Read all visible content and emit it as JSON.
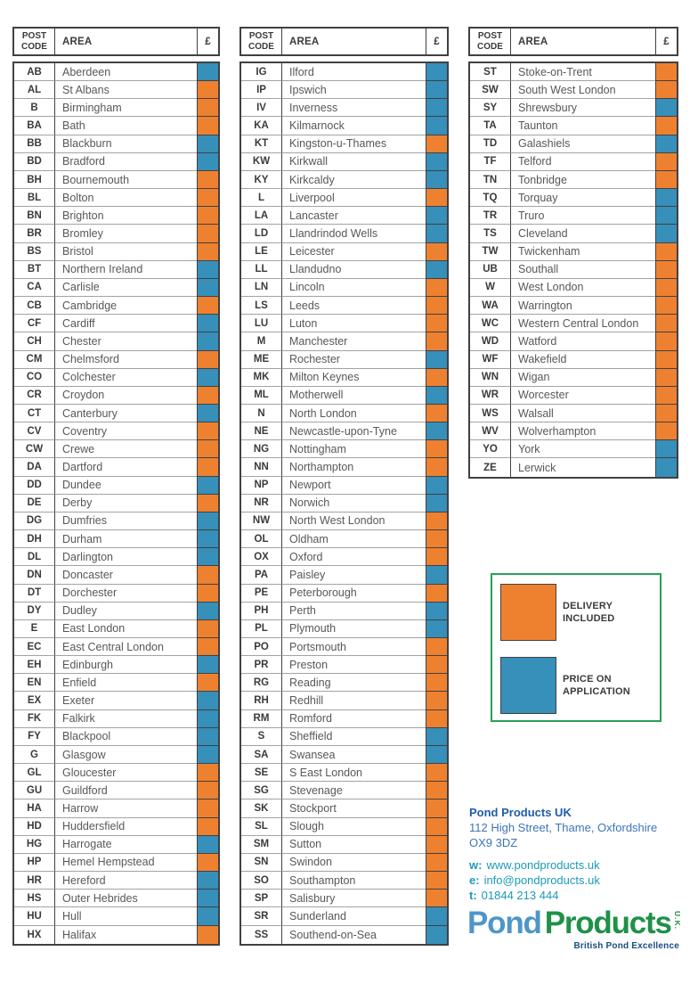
{
  "labels": {
    "post_code": "POST CODE",
    "area": "AREA",
    "pound": "£"
  },
  "colors": {
    "delivery_included": "#EE8130",
    "price_on_application": "#3690B9",
    "table_border": "#414042",
    "row_divider": "#A3A3A2",
    "code_text": "#3A3A3C",
    "area_text": "#58585A",
    "legend_border": "#27A055",
    "footer_blue_dark": "#1F5CA9",
    "footer_blue": "#3D74B8",
    "footer_teal": "#1C9AB5",
    "logo_blue": "#4E96C8",
    "logo_green": "#1F9148",
    "tagline_navy": "#1B4B7E"
  },
  "tables": [
    {
      "rows": [
        {
          "code": "AB",
          "area": "Aberdeen",
          "status": "poa"
        },
        {
          "code": "AL",
          "area": "St Albans",
          "status": "inc"
        },
        {
          "code": "B",
          "area": "Birmingham",
          "status": "inc"
        },
        {
          "code": "BA",
          "area": "Bath",
          "status": "inc"
        },
        {
          "code": "BB",
          "area": "Blackburn",
          "status": "poa"
        },
        {
          "code": "BD",
          "area": "Bradford",
          "status": "poa"
        },
        {
          "code": "BH",
          "area": "Bournemouth",
          "status": "inc"
        },
        {
          "code": "BL",
          "area": "Bolton",
          "status": "inc"
        },
        {
          "code": "BN",
          "area": "Brighton",
          "status": "inc"
        },
        {
          "code": "BR",
          "area": "Bromley",
          "status": "inc"
        },
        {
          "code": "BS",
          "area": "Bristol",
          "status": "inc"
        },
        {
          "code": "BT",
          "area": "Northern Ireland",
          "status": "poa"
        },
        {
          "code": "CA",
          "area": "Carlisle",
          "status": "poa"
        },
        {
          "code": "CB",
          "area": "Cambridge",
          "status": "inc"
        },
        {
          "code": "CF",
          "area": "Cardiff",
          "status": "poa"
        },
        {
          "code": "CH",
          "area": "Chester",
          "status": "poa"
        },
        {
          "code": "CM",
          "area": "Chelmsford",
          "status": "inc"
        },
        {
          "code": "CO",
          "area": "Colchester",
          "status": "poa"
        },
        {
          "code": "CR",
          "area": "Croydon",
          "status": "inc"
        },
        {
          "code": "CT",
          "area": "Canterbury",
          "status": "poa"
        },
        {
          "code": "CV",
          "area": "Coventry",
          "status": "inc"
        },
        {
          "code": "CW",
          "area": "Crewe",
          "status": "inc"
        },
        {
          "code": "DA",
          "area": "Dartford",
          "status": "inc"
        },
        {
          "code": "DD",
          "area": "Dundee",
          "status": "poa"
        },
        {
          "code": "DE",
          "area": "Derby",
          "status": "inc"
        },
        {
          "code": "DG",
          "area": "Dumfries",
          "status": "poa"
        },
        {
          "code": "DH",
          "area": "Durham",
          "status": "poa"
        },
        {
          "code": "DL",
          "area": "Darlington",
          "status": "poa"
        },
        {
          "code": "DN",
          "area": "Doncaster",
          "status": "inc"
        },
        {
          "code": "DT",
          "area": "Dorchester",
          "status": "inc"
        },
        {
          "code": "DY",
          "area": "Dudley",
          "status": "poa"
        },
        {
          "code": "E",
          "area": "East London",
          "status": "inc"
        },
        {
          "code": "EC",
          "area": "East Central London",
          "status": "inc"
        },
        {
          "code": "EH",
          "area": "Edinburgh",
          "status": "poa"
        },
        {
          "code": "EN",
          "area": "Enfield",
          "status": "inc"
        },
        {
          "code": "EX",
          "area": "Exeter",
          "status": "poa"
        },
        {
          "code": "FK",
          "area": "Falkirk",
          "status": "poa"
        },
        {
          "code": "FY",
          "area": "Blackpool",
          "status": "poa"
        },
        {
          "code": "G",
          "area": "Glasgow",
          "status": "poa"
        },
        {
          "code": "GL",
          "area": "Gloucester",
          "status": "inc"
        },
        {
          "code": "GU",
          "area": "Guildford",
          "status": "inc"
        },
        {
          "code": "HA",
          "area": "Harrow",
          "status": "inc"
        },
        {
          "code": "HD",
          "area": "Huddersfield",
          "status": "inc"
        },
        {
          "code": "HG",
          "area": "Harrogate",
          "status": "poa"
        },
        {
          "code": "HP",
          "area": "Hemel Hempstead",
          "status": "inc"
        },
        {
          "code": "HR",
          "area": "Hereford",
          "status": "poa"
        },
        {
          "code": "HS",
          "area": "Outer Hebrides",
          "status": "poa"
        },
        {
          "code": "HU",
          "area": "Hull",
          "status": "poa"
        },
        {
          "code": "HX",
          "area": "Halifax",
          "status": "inc"
        }
      ]
    },
    {
      "rows": [
        {
          "code": "IG",
          "area": "Ilford",
          "status": "poa"
        },
        {
          "code": "IP",
          "area": "Ipswich",
          "status": "poa"
        },
        {
          "code": "IV",
          "area": "Inverness",
          "status": "poa"
        },
        {
          "code": "KA",
          "area": "Kilmarnock",
          "status": "poa"
        },
        {
          "code": "KT",
          "area": "Kingston-u-Thames",
          "status": "inc"
        },
        {
          "code": "KW",
          "area": "Kirkwall",
          "status": "poa"
        },
        {
          "code": "KY",
          "area": "Kirkcaldy",
          "status": "poa"
        },
        {
          "code": "L",
          "area": "Liverpool",
          "status": "inc"
        },
        {
          "code": "LA",
          "area": "Lancaster",
          "status": "poa"
        },
        {
          "code": "LD",
          "area": "Llandrindod Wells",
          "status": "poa"
        },
        {
          "code": "LE",
          "area": "Leicester",
          "status": "inc"
        },
        {
          "code": "LL",
          "area": "Llandudno",
          "status": "poa"
        },
        {
          "code": "LN",
          "area": "Lincoln",
          "status": "inc"
        },
        {
          "code": "LS",
          "area": "Leeds",
          "status": "inc"
        },
        {
          "code": "LU",
          "area": "Luton",
          "status": "inc"
        },
        {
          "code": "M",
          "area": "Manchester",
          "status": "inc"
        },
        {
          "code": "ME",
          "area": "Rochester",
          "status": "poa"
        },
        {
          "code": "MK",
          "area": "Milton Keynes",
          "status": "inc"
        },
        {
          "code": "ML",
          "area": "Motherwell",
          "status": "poa"
        },
        {
          "code": "N",
          "area": "North London",
          "status": "inc"
        },
        {
          "code": "NE",
          "area": "Newcastle-upon-Tyne",
          "status": "poa"
        },
        {
          "code": "NG",
          "area": "Nottingham",
          "status": "inc"
        },
        {
          "code": "NN",
          "area": "Northampton",
          "status": "inc"
        },
        {
          "code": "NP",
          "area": "Newport",
          "status": "poa"
        },
        {
          "code": "NR",
          "area": "Norwich",
          "status": "poa"
        },
        {
          "code": "NW",
          "area": "North West London",
          "status": "inc"
        },
        {
          "code": "OL",
          "area": "Oldham",
          "status": "inc"
        },
        {
          "code": "OX",
          "area": "Oxford",
          "status": "inc"
        },
        {
          "code": "PA",
          "area": "Paisley",
          "status": "poa"
        },
        {
          "code": "PE",
          "area": "Peterborough",
          "status": "inc"
        },
        {
          "code": "PH",
          "area": "Perth",
          "status": "poa"
        },
        {
          "code": "PL",
          "area": "Plymouth",
          "status": "poa"
        },
        {
          "code": "PO",
          "area": "Portsmouth",
          "status": "inc"
        },
        {
          "code": "PR",
          "area": "Preston",
          "status": "inc"
        },
        {
          "code": "RG",
          "area": "Reading",
          "status": "inc"
        },
        {
          "code": "RH",
          "area": "Redhill",
          "status": "inc"
        },
        {
          "code": "RM",
          "area": "Romford",
          "status": "inc"
        },
        {
          "code": "S",
          "area": "Sheffield",
          "status": "poa"
        },
        {
          "code": "SA",
          "area": "Swansea",
          "status": "poa"
        },
        {
          "code": "SE",
          "area": "S East London",
          "status": "inc"
        },
        {
          "code": "SG",
          "area": "Stevenage",
          "status": "inc"
        },
        {
          "code": "SK",
          "area": "Stockport",
          "status": "inc"
        },
        {
          "code": "SL",
          "area": "Slough",
          "status": "inc"
        },
        {
          "code": "SM",
          "area": "Sutton",
          "status": "inc"
        },
        {
          "code": "SN",
          "area": "Swindon",
          "status": "inc"
        },
        {
          "code": "SO",
          "area": "Southampton",
          "status": "inc"
        },
        {
          "code": "SP",
          "area": "Salisbury",
          "status": "inc"
        },
        {
          "code": "SR",
          "area": "Sunderland",
          "status": "poa"
        },
        {
          "code": "SS",
          "area": "Southend-on-Sea",
          "status": "poa"
        }
      ]
    },
    {
      "rows": [
        {
          "code": "ST",
          "area": "Stoke-on-Trent",
          "status": "inc"
        },
        {
          "code": "SW",
          "area": "South West London",
          "status": "inc"
        },
        {
          "code": "SY",
          "area": "Shrewsbury",
          "status": "poa"
        },
        {
          "code": "TA",
          "area": "Taunton",
          "status": "inc"
        },
        {
          "code": "TD",
          "area": "Galashiels",
          "status": "poa"
        },
        {
          "code": "TF",
          "area": "Telford",
          "status": "inc"
        },
        {
          "code": "TN",
          "area": "Tonbridge",
          "status": "inc"
        },
        {
          "code": "TQ",
          "area": "Torquay",
          "status": "poa"
        },
        {
          "code": "TR",
          "area": "Truro",
          "status": "poa"
        },
        {
          "code": "TS",
          "area": "Cleveland",
          "status": "poa"
        },
        {
          "code": "TW",
          "area": "Twickenham",
          "status": "inc"
        },
        {
          "code": "UB",
          "area": "Southall",
          "status": "inc"
        },
        {
          "code": "W",
          "area": "West London",
          "status": "inc"
        },
        {
          "code": "WA",
          "area": "Warrington",
          "status": "inc"
        },
        {
          "code": "WC",
          "area": "Western Central London",
          "status": "inc"
        },
        {
          "code": "WD",
          "area": "Watford",
          "status": "inc"
        },
        {
          "code": "WF",
          "area": "Wakefield",
          "status": "inc"
        },
        {
          "code": "WN",
          "area": "Wigan",
          "status": "inc"
        },
        {
          "code": "WR",
          "area": "Worcester",
          "status": "inc"
        },
        {
          "code": "WS",
          "area": "Walsall",
          "status": "inc"
        },
        {
          "code": "WV",
          "area": "Wolverhampton",
          "status": "inc"
        },
        {
          "code": "YO",
          "area": "York",
          "status": "poa"
        },
        {
          "code": "ZE",
          "area": "Lerwick",
          "status": "poa"
        }
      ]
    }
  ],
  "legend": {
    "delivery_label": "DELIVERY INCLUDED",
    "poa_label": "PRICE ON APPLICATION"
  },
  "footer": {
    "company": "Pond Products UK",
    "address_line1": "112 High Street, Thame, Oxfordshire",
    "address_line2": "OX9 3DZ",
    "web_label": "w:",
    "web": "www.pondproducts.uk",
    "email_label": "e:",
    "email": "info@pondproducts.uk",
    "tel_label": "t:",
    "tel": "01844 213 444"
  },
  "logo": {
    "word1": "Pond",
    "word2": "Products",
    "suffix": "U.K.",
    "tagline": "British Pond Excellence"
  }
}
